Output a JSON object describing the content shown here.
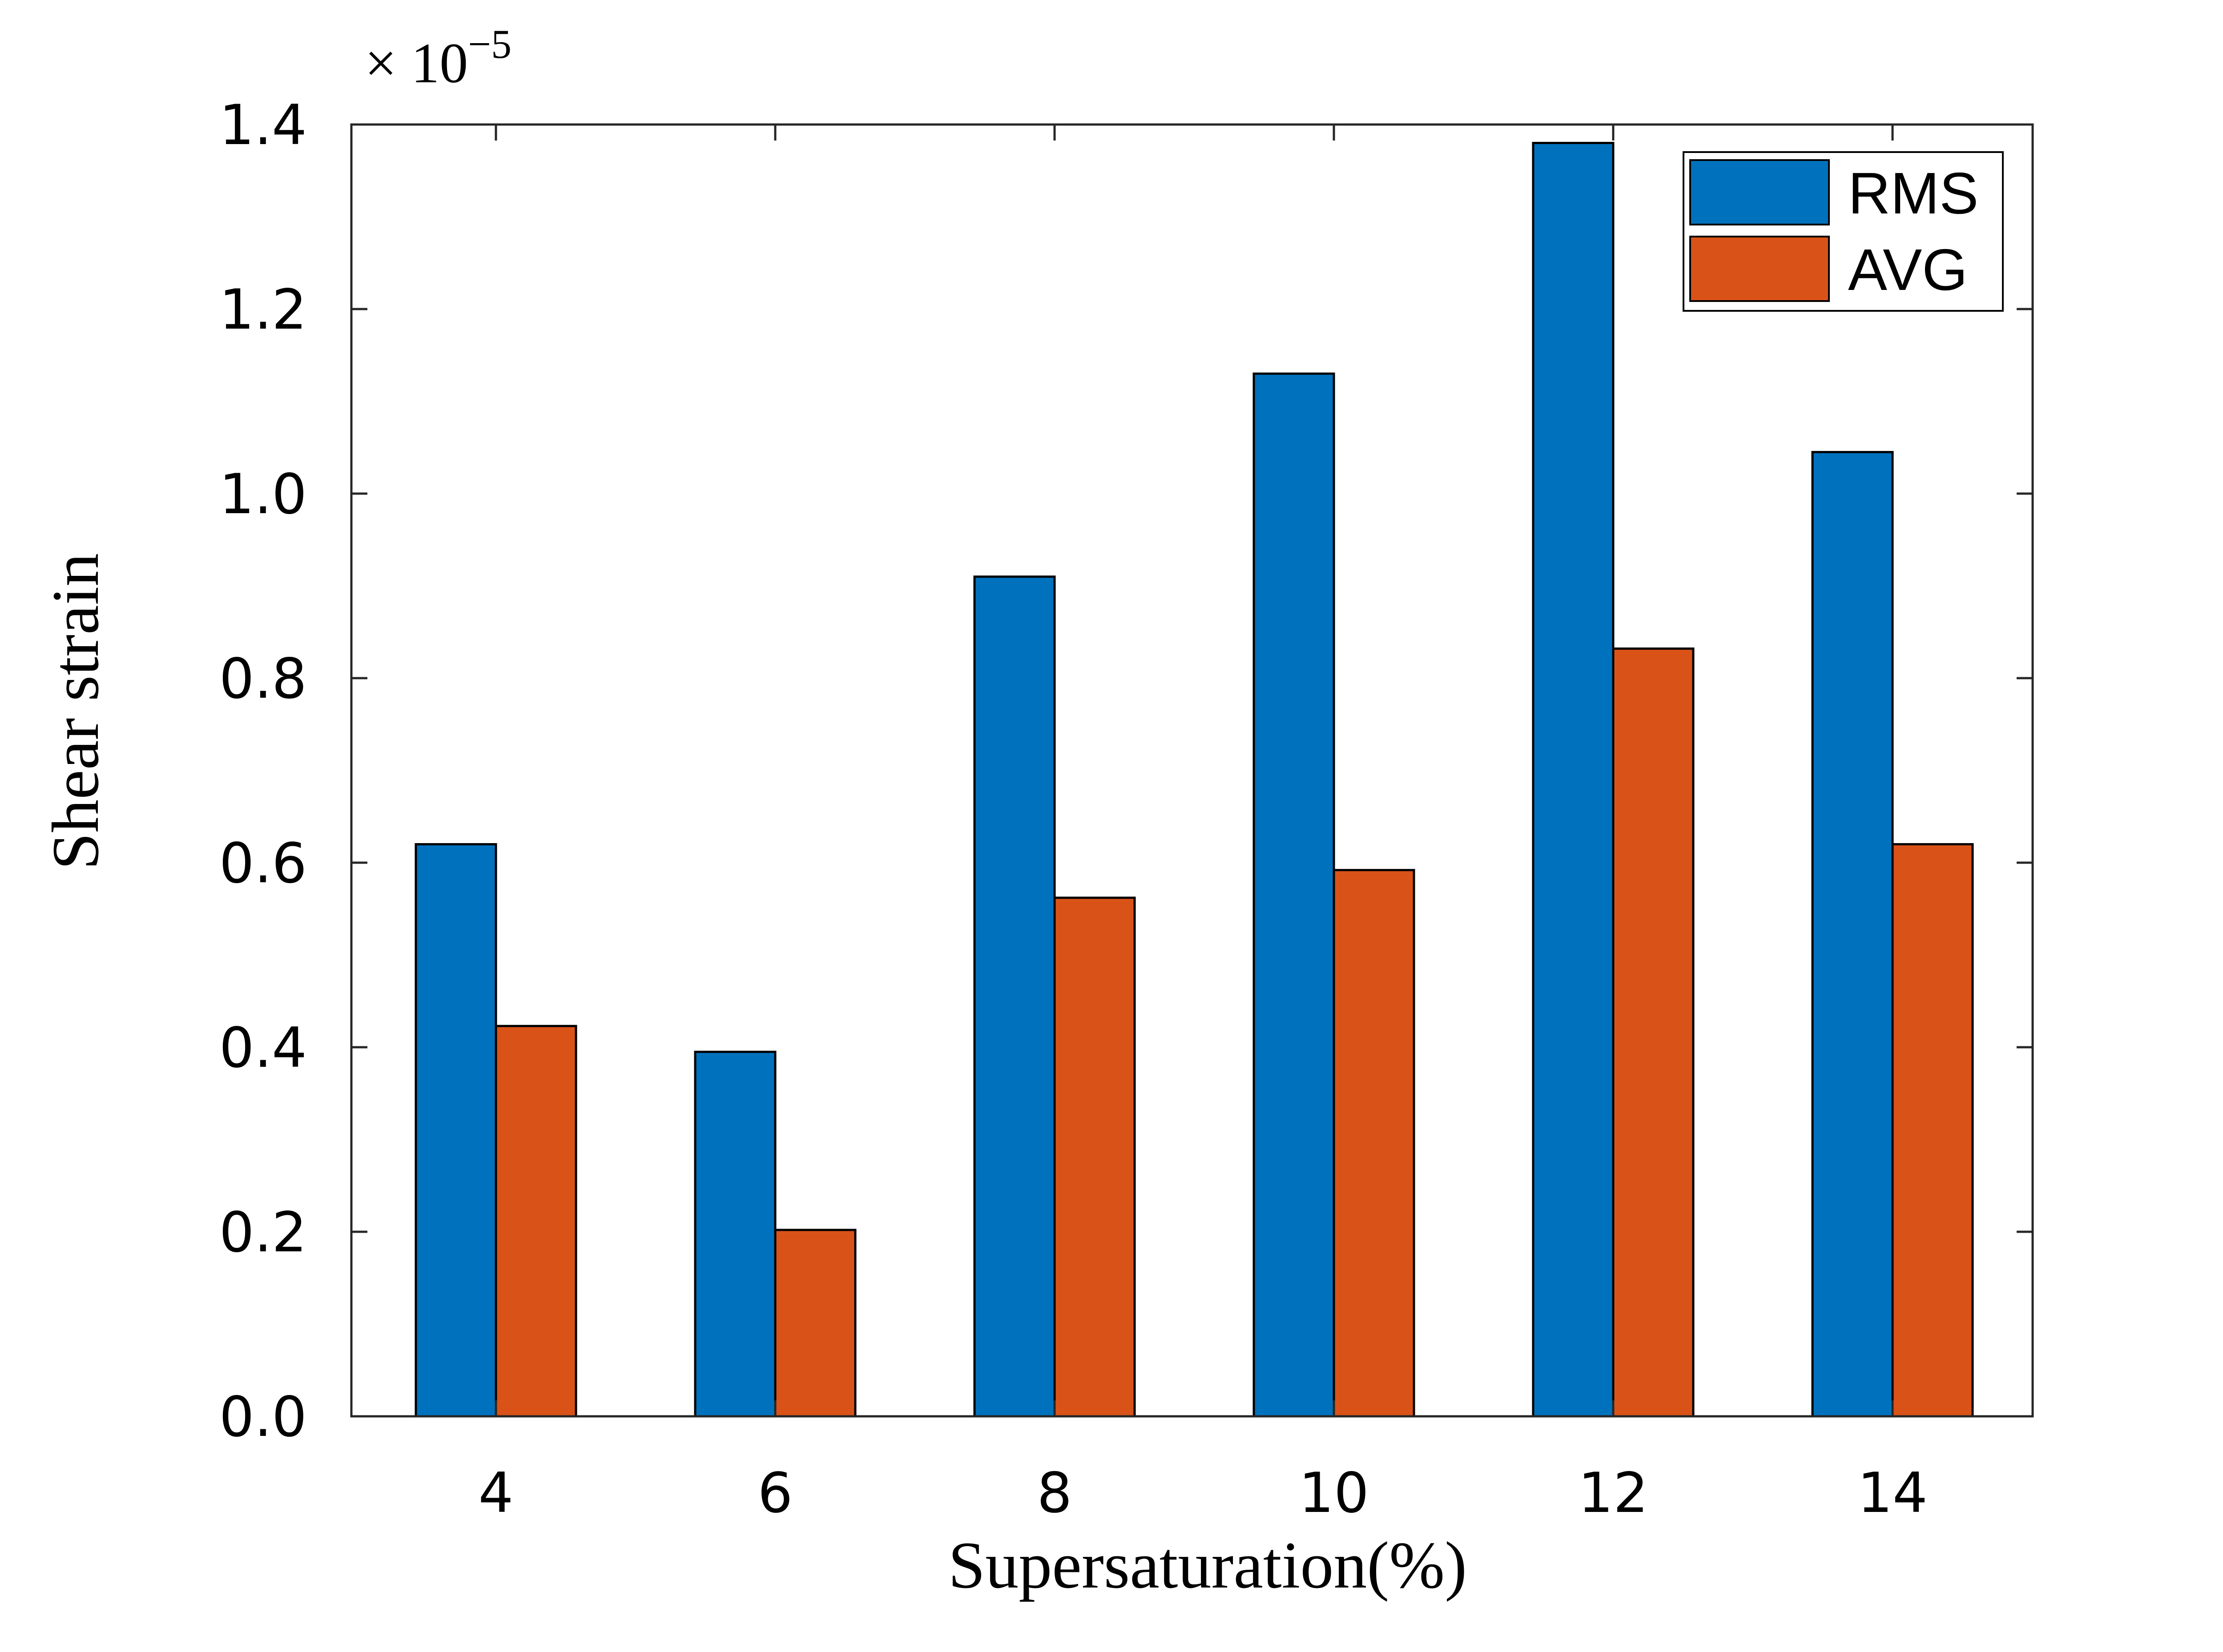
{
  "chart_data": {
    "type": "bar",
    "categories": [
      "4",
      "6",
      "8",
      "10",
      "12",
      "14"
    ],
    "series": [
      {
        "name": "RMS",
        "color": "#0072BD",
        "values": [
          0.62,
          0.395,
          0.91,
          1.13,
          1.38,
          1.045
        ]
      },
      {
        "name": "AVG",
        "color": "#D95319",
        "values": [
          0.423,
          0.202,
          0.562,
          0.592,
          0.832,
          0.62
        ]
      }
    ],
    "xlabel": "Supersaturation(%)",
    "ylabel": "Shear strain",
    "ylim": [
      0,
      1.4
    ],
    "yticks": [
      "0.0",
      "0.2",
      "0.4",
      "0.6",
      "0.8",
      "1.0",
      "1.2",
      "1.4"
    ],
    "y_exponent": {
      "prefix": "× 10",
      "power": "−5"
    },
    "legend_position": "top-right",
    "grid": false
  }
}
